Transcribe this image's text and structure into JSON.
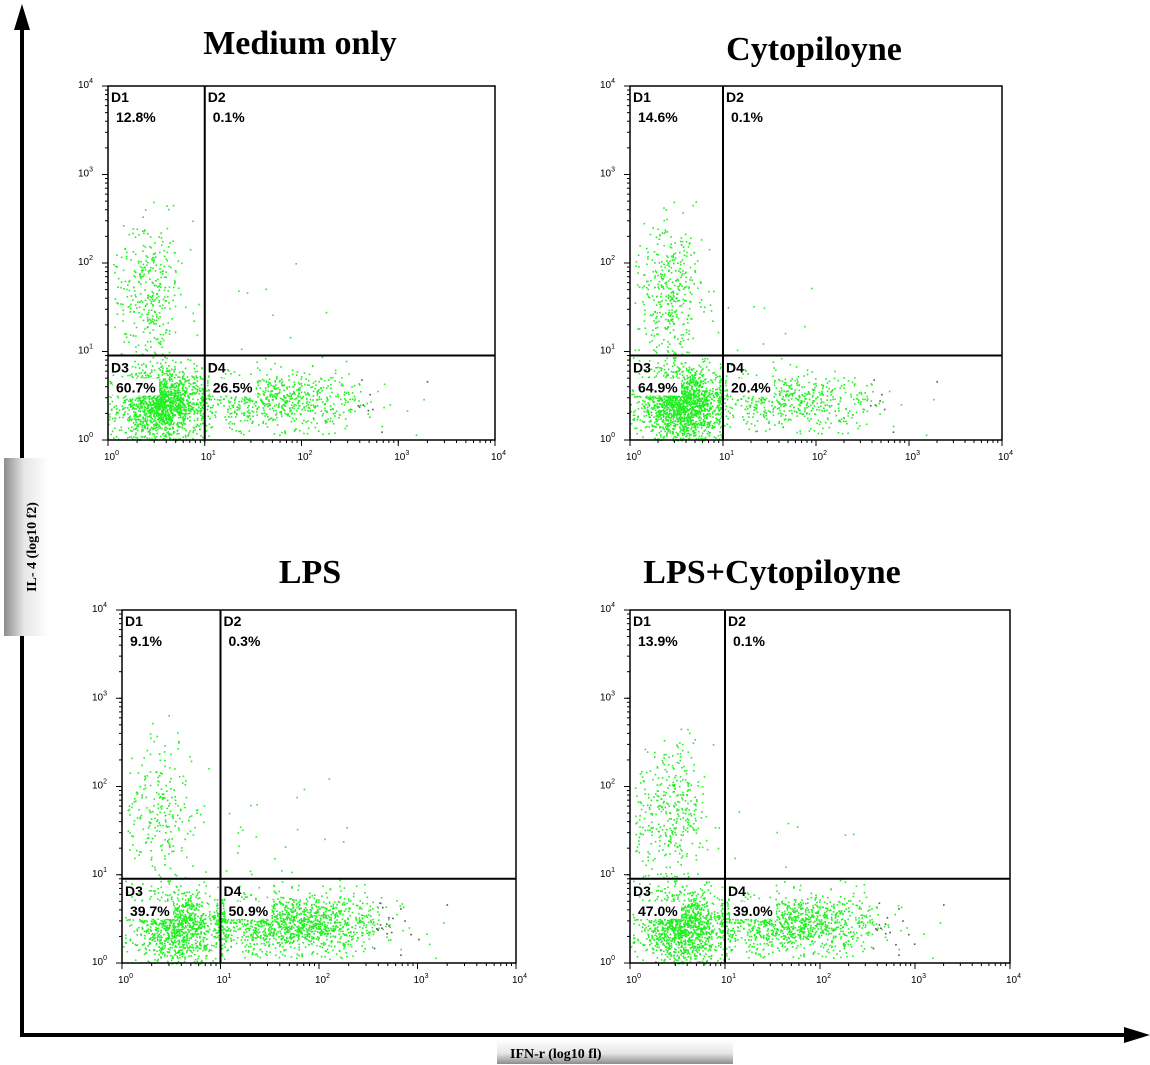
{
  "figure": {
    "x_axis_label": "IFN-r (log10 fl)",
    "y_axis_label": "IL- 4 (log10 f2)",
    "colors": {
      "dots": "#22ee22",
      "dots_dark": "#555555",
      "axis": "#000000"
    }
  },
  "chart_data": [
    {
      "type": "scatter",
      "title": "Medium only",
      "x_scale": "log10",
      "y_scale": "log10",
      "xlim": [
        1,
        10000
      ],
      "ylim": [
        1,
        10000
      ],
      "x_ticks": [
        "10",
        "10",
        "10",
        "10",
        "10"
      ],
      "x_tick_exps": [
        "0",
        "1",
        "2",
        "3",
        "4"
      ],
      "y_ticks": [
        "10",
        "10",
        "10",
        "10",
        "10"
      ],
      "y_tick_exps": [
        "0",
        "1",
        "2",
        "3",
        "4"
      ],
      "gate": {
        "x": 10,
        "y": 9
      },
      "quadrants": [
        {
          "name": "D1",
          "percent": "12.8%"
        },
        {
          "name": "D2",
          "percent": "0.1%"
        },
        {
          "name": "D3",
          "percent": "60.7%"
        },
        {
          "name": "D4",
          "percent": "26.5%"
        }
      ]
    },
    {
      "type": "scatter",
      "title": "Cytopiloyne",
      "x_scale": "log10",
      "y_scale": "log10",
      "xlim": [
        1,
        10000
      ],
      "ylim": [
        1,
        10000
      ],
      "x_ticks": [
        "10",
        "10",
        "10",
        "10",
        "10"
      ],
      "x_tick_exps": [
        "0",
        "1",
        "2",
        "3",
        "4"
      ],
      "y_ticks": [
        "10",
        "10",
        "10",
        "10",
        "10"
      ],
      "y_tick_exps": [
        "0",
        "1",
        "2",
        "3",
        "4"
      ],
      "gate": {
        "x": 10,
        "y": 9
      },
      "quadrants": [
        {
          "name": "D1",
          "percent": "14.6%"
        },
        {
          "name": "D2",
          "percent": "0.1%"
        },
        {
          "name": "D3",
          "percent": "64.9%"
        },
        {
          "name": "D4",
          "percent": "20.4%"
        }
      ]
    },
    {
      "type": "scatter",
      "title": "LPS",
      "x_scale": "log10",
      "y_scale": "log10",
      "xlim": [
        1,
        10000
      ],
      "ylim": [
        1,
        10000
      ],
      "x_ticks": [
        "10",
        "10",
        "10",
        "10",
        "10"
      ],
      "x_tick_exps": [
        "0",
        "1",
        "2",
        "3",
        "4"
      ],
      "y_ticks": [
        "10",
        "10",
        "10",
        "10",
        "10"
      ],
      "y_tick_exps": [
        "0",
        "1",
        "2",
        "3",
        "4"
      ],
      "gate": {
        "x": 10,
        "y": 9
      },
      "quadrants": [
        {
          "name": "D1",
          "percent": "9.1%"
        },
        {
          "name": "D2",
          "percent": "0.3%"
        },
        {
          "name": "D3",
          "percent": "39.7%"
        },
        {
          "name": "D4",
          "percent": "50.9%"
        }
      ]
    },
    {
      "type": "scatter",
      "title": "LPS+Cytopiloyne",
      "x_scale": "log10",
      "y_scale": "log10",
      "xlim": [
        1,
        10000
      ],
      "ylim": [
        1,
        10000
      ],
      "x_ticks": [
        "10",
        "10",
        "10",
        "10",
        "10"
      ],
      "x_tick_exps": [
        "0",
        "1",
        "2",
        "3",
        "4"
      ],
      "y_ticks": [
        "10",
        "10",
        "10",
        "10",
        "10"
      ],
      "y_tick_exps": [
        "0",
        "1",
        "2",
        "3",
        "4"
      ],
      "gate": {
        "x": 10,
        "y": 9
      },
      "quadrants": [
        {
          "name": "D1",
          "percent": "13.9%"
        },
        {
          "name": "D2",
          "percent": "0.1%"
        },
        {
          "name": "D3",
          "percent": "47.0%"
        },
        {
          "name": "D4",
          "percent": "39.0%"
        }
      ]
    }
  ]
}
